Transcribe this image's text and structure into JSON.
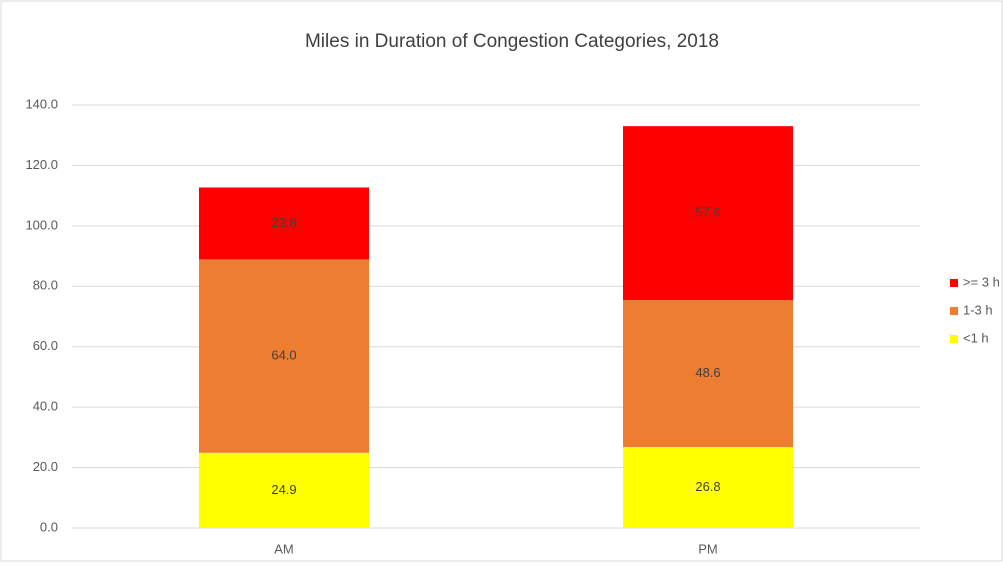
{
  "chart_data": {
    "type": "stacked_bar",
    "title": "Miles in Duration of Congestion Categories, 2018",
    "categories": [
      "AM",
      "PM"
    ],
    "series": [
      {
        "name": "<1 h",
        "color": "#ffff00",
        "values": [
          24.9,
          26.8
        ],
        "value_labels": [
          "24.9",
          "26.8"
        ]
      },
      {
        "name": "1-3 h",
        "color": "#ed7d31",
        "values": [
          64.0,
          48.6
        ],
        "value_labels": [
          "64.0",
          "48.6"
        ]
      },
      {
        "name": ">= 3 h",
        "color": "#ff0000",
        "values": [
          23.8,
          57.6
        ],
        "value_labels": [
          "23.8",
          "57.6"
        ]
      }
    ],
    "ylim": [
      0,
      140
    ],
    "yticks": [
      {
        "value": 0,
        "label": "0.0"
      },
      {
        "value": 20,
        "label": "20.0"
      },
      {
        "value": 40,
        "label": "40.0"
      },
      {
        "value": 60,
        "label": "60.0"
      },
      {
        "value": 80,
        "label": "80.0"
      },
      {
        "value": 100,
        "label": "100.0"
      },
      {
        "value": 120,
        "label": "120.0"
      },
      {
        "value": 140,
        "label": "140.0"
      }
    ],
    "grid": true,
    "legend": "right"
  }
}
